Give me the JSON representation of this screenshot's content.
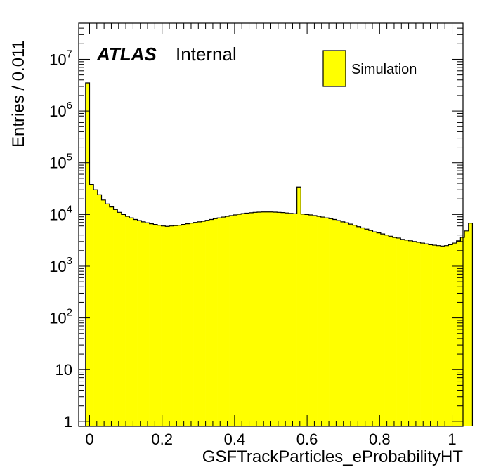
{
  "chart_data": {
    "type": "bar",
    "title": "",
    "xlabel": "GSFTrackParticles_eProbabilityHT",
    "ylabel": "Entries / 0.011",
    "label_bold": "ATLAS",
    "label_status": "Internal",
    "legend": [
      "Simulation"
    ],
    "legend_placement": "top-right",
    "yscale": "log",
    "xlim": [
      -0.03,
      1.03
    ],
    "ylim": [
      0.8,
      50000000
    ],
    "grid": false,
    "fill_color": "#ffff00",
    "edge_color": "#000000",
    "x_ticks": [
      {
        "value": 0,
        "label": "0"
      },
      {
        "value": 0.2,
        "label": "0.2"
      },
      {
        "value": 0.4,
        "label": "0.4"
      },
      {
        "value": 0.6,
        "label": "0.6"
      },
      {
        "value": 0.8,
        "label": "0.8"
      },
      {
        "value": 1,
        "label": "1"
      }
    ],
    "y_ticks": [
      {
        "value": 1,
        "base": "1",
        "exp": ""
      },
      {
        "value": 10,
        "base": "10",
        "exp": ""
      },
      {
        "value": 100,
        "base": "10",
        "exp": "2"
      },
      {
        "value": 1000,
        "base": "10",
        "exp": "3"
      },
      {
        "value": 10000,
        "base": "10",
        "exp": "4"
      },
      {
        "value": 100000,
        "base": "10",
        "exp": "5"
      },
      {
        "value": 1000000,
        "base": "10",
        "exp": "6"
      },
      {
        "value": 10000000,
        "base": "10",
        "exp": "7"
      }
    ],
    "bin_low": -0.011,
    "bin_width": 0.011,
    "values": [
      3500000,
      38000,
      30000,
      24000,
      19000,
      16000,
      14000,
      12500,
      11000,
      10000,
      9200,
      8600,
      8000,
      7600,
      7200,
      6900,
      6600,
      6400,
      6200,
      6000,
      5900,
      6000,
      6100,
      6200,
      6400,
      6600,
      6800,
      7000,
      7200,
      7400,
      7700,
      8000,
      8300,
      8600,
      8900,
      9200,
      9500,
      9800,
      10100,
      10400,
      10600,
      10800,
      11000,
      11100,
      11200,
      11200,
      11200,
      11100,
      11000,
      10900,
      10700,
      10500,
      10300,
      34000,
      10200,
      10000,
      9800,
      9500,
      9200,
      8900,
      8600,
      8300,
      8000,
      7600,
      7200,
      6900,
      6500,
      6200,
      5800,
      5500,
      5200,
      4900,
      4600,
      4400,
      4200,
      4000,
      3800,
      3600,
      3500,
      3300,
      3200,
      3100,
      3000,
      2900,
      2800,
      2700,
      2600,
      2550,
      2500,
      2450,
      2500,
      2600,
      2800,
      3100,
      3600,
      4800,
      6800
    ]
  }
}
